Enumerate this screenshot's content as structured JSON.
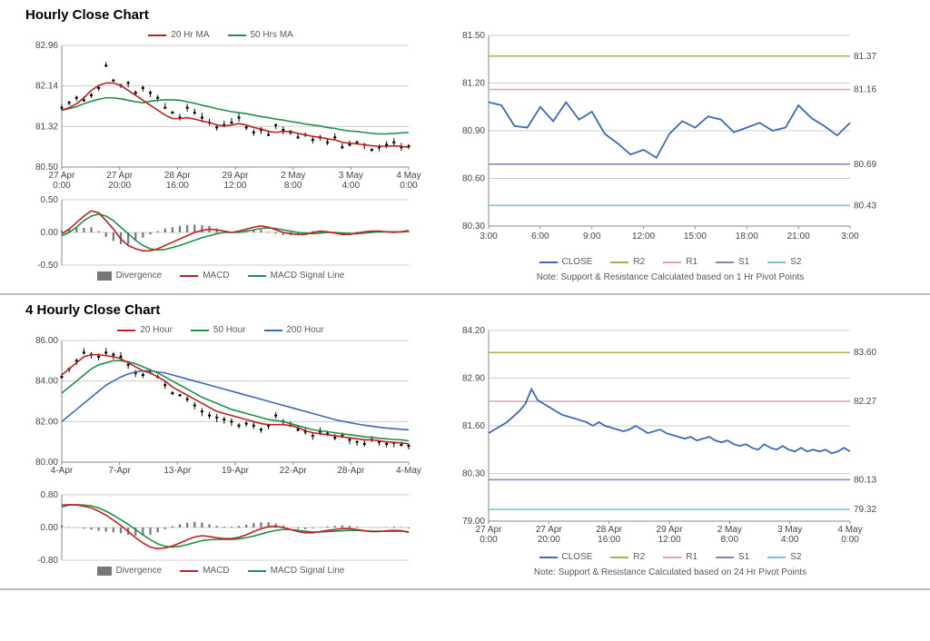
{
  "hourly": {
    "title": "Hourly Close Chart",
    "main_legend": [
      {
        "label": "20 Hr MA",
        "color": "#c11f1f"
      },
      {
        "label": "50 Hrs MA",
        "color": "#1f8f4a"
      }
    ],
    "main_chart": {
      "ylim": [
        80.5,
        82.96
      ],
      "yticks": [
        80.5,
        81.32,
        82.14,
        82.96
      ],
      "xlabels": [
        "27 Apr 0:00",
        "27 Apr 20:00",
        "28 Apr 16:00",
        "29 Apr 12:00",
        "2 May 8:00",
        "3 May 4:00",
        "4 May 0:00"
      ],
      "ma20_color": "#c11f1f",
      "ma50_color": "#1f8f4a",
      "candle_color": "#000000",
      "close": [
        81.7,
        81.8,
        81.9,
        81.85,
        81.95,
        82.1,
        82.55,
        82.25,
        82.15,
        82.2,
        82.0,
        82.1,
        82.0,
        81.9,
        81.7,
        81.6,
        81.5,
        81.7,
        81.6,
        81.5,
        81.4,
        81.3,
        81.35,
        81.4,
        81.5,
        81.3,
        81.2,
        81.25,
        81.15,
        81.35,
        81.25,
        81.2,
        81.1,
        81.15,
        81.05,
        81.1,
        81.0,
        81.1,
        80.9,
        80.95,
        81.0,
        80.95,
        80.85,
        80.9,
        80.95,
        81.0,
        80.9,
        80.92
      ],
      "ma20": [
        81.65,
        81.7,
        81.78,
        81.9,
        82.05,
        82.15,
        82.2,
        82.2,
        82.15,
        82.05,
        81.95,
        81.85,
        81.75,
        81.65,
        81.55,
        81.48,
        81.48,
        81.5,
        81.47,
        81.43,
        81.4,
        81.35,
        81.33,
        81.35,
        81.38,
        81.35,
        81.3,
        81.27,
        81.22,
        81.2,
        81.22,
        81.22,
        81.18,
        81.15,
        81.12,
        81.1,
        81.07,
        81.05,
        81.0,
        80.98,
        80.97,
        80.95,
        80.93,
        80.92,
        80.92,
        80.93,
        80.92,
        80.9
      ],
      "ma50": [
        81.65,
        81.68,
        81.72,
        81.78,
        81.83,
        81.87,
        81.9,
        81.9,
        81.88,
        81.85,
        81.82,
        81.8,
        81.83,
        81.85,
        81.86,
        81.86,
        81.85,
        81.82,
        81.79,
        81.75,
        81.72,
        81.68,
        81.65,
        81.62,
        81.6,
        81.58,
        81.55,
        81.52,
        81.5,
        81.47,
        81.45,
        81.42,
        81.4,
        81.37,
        81.35,
        81.33,
        81.3,
        81.28,
        81.25,
        81.23,
        81.22,
        81.2,
        81.18,
        81.17,
        81.17,
        81.18,
        81.19,
        81.2
      ],
      "background_color": "#ffffff",
      "grid_color": "#cccccc"
    },
    "macd_panel": {
      "ylim": [
        -0.5,
        0.5
      ],
      "yticks": [
        -0.5,
        0.0,
        0.5
      ],
      "macd_color": "#c11f1f",
      "signal_color": "#1f8f4a",
      "div_color": "#777777",
      "legend": [
        {
          "label": "Divergence",
          "type": "block",
          "color": "#777777"
        },
        {
          "label": "MACD",
          "type": "line",
          "color": "#c11f1f"
        },
        {
          "label": "MACD Signal Line",
          "type": "line",
          "color": "#1f8f4a"
        }
      ],
      "macd": [
        -0.02,
        0.05,
        0.15,
        0.25,
        0.33,
        0.3,
        0.18,
        0.05,
        -0.1,
        -0.2,
        -0.25,
        -0.28,
        -0.28,
        -0.25,
        -0.2,
        -0.15,
        -0.1,
        -0.05,
        0.0,
        0.03,
        0.05,
        0.04,
        0.02,
        0.0,
        0.02,
        0.05,
        0.08,
        0.1,
        0.08,
        0.04,
        0.0,
        -0.02,
        -0.03,
        -0.03,
        0.0,
        0.02,
        0.01,
        -0.01,
        -0.03,
        -0.03,
        -0.01,
        0.01,
        0.02,
        0.02,
        0.01,
        0.0,
        0.01,
        0.03
      ],
      "signal": [
        -0.05,
        0.0,
        0.08,
        0.18,
        0.25,
        0.28,
        0.25,
        0.18,
        0.08,
        -0.02,
        -0.12,
        -0.2,
        -0.25,
        -0.27,
        -0.26,
        -0.23,
        -0.2,
        -0.16,
        -0.12,
        -0.08,
        -0.05,
        -0.02,
        0.0,
        0.0,
        0.0,
        0.02,
        0.04,
        0.06,
        0.07,
        0.06,
        0.04,
        0.02,
        0.0,
        -0.01,
        -0.02,
        -0.01,
        0.0,
        0.0,
        -0.01,
        -0.02,
        -0.02,
        -0.01,
        0.0,
        0.01,
        0.01,
        0.01,
        0.01,
        0.02
      ],
      "div": [
        0.03,
        0.05,
        0.07,
        0.07,
        0.08,
        0.02,
        -0.07,
        -0.13,
        -0.18,
        -0.18,
        -0.13,
        -0.08,
        -0.03,
        0.02,
        0.06,
        0.08,
        0.1,
        0.11,
        0.12,
        0.11,
        0.1,
        0.06,
        0.02,
        0.0,
        0.02,
        0.03,
        0.04,
        0.04,
        0.01,
        -0.02,
        -0.04,
        -0.04,
        -0.03,
        -0.02,
        0.02,
        0.03,
        0.01,
        -0.01,
        -0.02,
        -0.01,
        0.01,
        0.02,
        0.02,
        0.01,
        0.0,
        -0.01,
        0.0,
        0.01
      ]
    },
    "sr_chart": {
      "ylim": [
        80.3,
        81.5
      ],
      "yticks": [
        80.3,
        80.6,
        80.9,
        81.2,
        81.5
      ],
      "xlabels": [
        "3:00",
        "6:00",
        "9:00",
        "12:00",
        "15:00",
        "18:00",
        "21:00",
        "3:00"
      ],
      "levels": {
        "R2": {
          "value": 81.37,
          "color": "#a0b64c"
        },
        "R1": {
          "value": 81.16,
          "color": "#d9a3b0"
        },
        "S1": {
          "value": 80.69,
          "color": "#8d7cc0"
        },
        "S2": {
          "value": 80.43,
          "color": "#6fc7d9"
        }
      },
      "close_color": "#3a6ab8",
      "close": [
        81.08,
        81.06,
        80.93,
        80.92,
        81.05,
        80.96,
        81.08,
        80.97,
        81.02,
        80.88,
        80.82,
        80.75,
        80.78,
        80.73,
        80.88,
        80.96,
        80.92,
        80.99,
        80.97,
        80.89,
        80.92,
        80.95,
        80.9,
        80.92,
        81.06,
        80.98,
        80.93,
        80.87,
        80.95
      ],
      "legend": [
        {
          "label": "CLOSE",
          "color": "#3a6ab8"
        },
        {
          "label": "R2",
          "color": "#a0b64c"
        },
        {
          "label": "R1",
          "color": "#d9a3b0"
        },
        {
          "label": "S1",
          "color": "#8d7cc0"
        },
        {
          "label": "S2",
          "color": "#6fc7d9"
        }
      ],
      "note": "Note: Support & Resistance Calculated based on 1 Hr Pivot Points"
    }
  },
  "four_hourly": {
    "title": "4 Hourly Close Chart",
    "main_legend": [
      {
        "label": "20 Hour",
        "color": "#c11f1f"
      },
      {
        "label": "50 Hour",
        "color": "#1f8f4a"
      },
      {
        "label": "200 Hour",
        "color": "#3a6ab8"
      }
    ],
    "main_chart": {
      "ylim": [
        80.0,
        86.0
      ],
      "yticks": [
        80.0,
        82.0,
        84.0,
        86.0
      ],
      "xlabels": [
        "4-Apr",
        "7-Apr",
        "13-Apr",
        "19-Apr",
        "22-Apr",
        "28-Apr",
        "4-May"
      ],
      "ma20_color": "#c11f1f",
      "ma50_color": "#1f8f4a",
      "ma200_color": "#3a6ab8",
      "candle_color": "#000000",
      "close": [
        84.2,
        84.6,
        85.0,
        85.4,
        85.3,
        85.2,
        85.4,
        85.3,
        85.2,
        84.8,
        84.4,
        84.3,
        84.5,
        84.2,
        83.8,
        83.4,
        83.3,
        83.1,
        82.8,
        82.5,
        82.3,
        82.2,
        82.1,
        82.0,
        81.8,
        81.9,
        81.8,
        81.6,
        81.8,
        82.3,
        82.0,
        81.8,
        81.6,
        81.5,
        81.3,
        81.5,
        81.4,
        81.2,
        81.3,
        81.1,
        81.0,
        80.9,
        81.1,
        81.0,
        80.9,
        80.95,
        80.85,
        80.8
      ],
      "ma20": [
        84.3,
        84.6,
        84.9,
        85.2,
        85.3,
        85.3,
        85.25,
        85.2,
        85.1,
        84.9,
        84.7,
        84.5,
        84.4,
        84.2,
        84.0,
        83.7,
        83.5,
        83.3,
        83.1,
        82.9,
        82.7,
        82.5,
        82.4,
        82.3,
        82.2,
        82.1,
        82.0,
        81.9,
        81.85,
        81.85,
        81.85,
        81.8,
        81.7,
        81.55,
        81.45,
        81.4,
        81.35,
        81.3,
        81.25,
        81.2,
        81.15,
        81.1,
        81.1,
        81.05,
        81.0,
        80.97,
        80.95,
        80.9
      ],
      "ma50": [
        83.4,
        83.7,
        84.0,
        84.3,
        84.6,
        84.8,
        84.9,
        85.0,
        85.0,
        84.95,
        84.85,
        84.7,
        84.55,
        84.4,
        84.2,
        84.0,
        83.8,
        83.6,
        83.4,
        83.2,
        83.05,
        82.9,
        82.75,
        82.6,
        82.5,
        82.4,
        82.3,
        82.2,
        82.1,
        82.05,
        82.0,
        81.9,
        81.8,
        81.7,
        81.6,
        81.55,
        81.5,
        81.45,
        81.4,
        81.35,
        81.3,
        81.25,
        81.22,
        81.18,
        81.15,
        81.12,
        81.1,
        81.05
      ],
      "ma200": [
        82.0,
        82.3,
        82.6,
        82.9,
        83.2,
        83.5,
        83.8,
        84.0,
        84.2,
        84.35,
        84.45,
        84.5,
        84.5,
        84.45,
        84.4,
        84.3,
        84.2,
        84.1,
        84.0,
        83.9,
        83.8,
        83.7,
        83.6,
        83.5,
        83.4,
        83.3,
        83.2,
        83.1,
        83.0,
        82.9,
        82.8,
        82.7,
        82.6,
        82.5,
        82.4,
        82.3,
        82.2,
        82.1,
        82.02,
        81.95,
        81.88,
        81.82,
        81.77,
        81.72,
        81.68,
        81.65,
        81.62,
        81.6
      ],
      "background_color": "#ffffff",
      "grid_color": "#cccccc"
    },
    "macd_panel": {
      "ylim": [
        -0.8,
        0.8
      ],
      "yticks": [
        -0.8,
        0.0,
        0.8
      ],
      "macd_color": "#c11f1f",
      "signal_color": "#1f8f4a",
      "div_color": "#777777",
      "legend": [
        {
          "label": "Divergence",
          "type": "block",
          "color": "#777777"
        },
        {
          "label": "MACD",
          "type": "line",
          "color": "#c11f1f"
        },
        {
          "label": "MACD Signal Line",
          "type": "line",
          "color": "#1f8f4a"
        }
      ],
      "macd": [
        0.55,
        0.56,
        0.55,
        0.52,
        0.48,
        0.4,
        0.3,
        0.18,
        0.05,
        -0.1,
        -0.25,
        -0.38,
        -0.48,
        -0.52,
        -0.5,
        -0.45,
        -0.38,
        -0.3,
        -0.23,
        -0.2,
        -0.22,
        -0.25,
        -0.27,
        -0.27,
        -0.24,
        -0.18,
        -0.1,
        -0.03,
        0.02,
        0.03,
        0.0,
        -0.05,
        -0.1,
        -0.13,
        -0.13,
        -0.1,
        -0.07,
        -0.05,
        -0.03,
        -0.03,
        -0.05,
        -0.08,
        -0.1,
        -0.1,
        -0.08,
        -0.07,
        -0.08,
        -0.12
      ],
      "signal": [
        0.5,
        0.55,
        0.56,
        0.55,
        0.53,
        0.48,
        0.4,
        0.3,
        0.19,
        0.08,
        -0.05,
        -0.18,
        -0.3,
        -0.4,
        -0.46,
        -0.48,
        -0.46,
        -0.42,
        -0.37,
        -0.32,
        -0.3,
        -0.29,
        -0.29,
        -0.29,
        -0.28,
        -0.25,
        -0.21,
        -0.16,
        -0.11,
        -0.07,
        -0.05,
        -0.05,
        -0.07,
        -0.09,
        -0.11,
        -0.11,
        -0.1,
        -0.09,
        -0.08,
        -0.07,
        -0.07,
        -0.08,
        -0.09,
        -0.09,
        -0.09,
        -0.09,
        -0.09,
        -0.1
      ],
      "div": [
        0.05,
        0.01,
        -0.01,
        -0.03,
        -0.05,
        -0.08,
        -0.1,
        -0.12,
        -0.14,
        -0.18,
        -0.2,
        -0.2,
        -0.18,
        -0.12,
        -0.04,
        0.03,
        0.08,
        0.12,
        0.14,
        0.12,
        0.08,
        0.04,
        0.02,
        0.02,
        0.04,
        0.07,
        0.11,
        0.13,
        0.13,
        0.1,
        0.05,
        0.0,
        -0.03,
        -0.04,
        -0.02,
        0.01,
        0.03,
        0.04,
        0.05,
        0.04,
        0.02,
        0.0,
        -0.01,
        -0.01,
        0.01,
        0.02,
        0.01,
        -0.02
      ]
    },
    "sr_chart": {
      "ylim": [
        79.0,
        84.2
      ],
      "yticks": [
        79.0,
        80.3,
        81.6,
        82.9,
        84.2
      ],
      "xlabels": [
        "27 Apr 0:00",
        "27 Apr 20:00",
        "28 Apr 16:00",
        "29 Apr 12:00",
        "2 May 8:00",
        "3 May 4:00",
        "4 May 0:00"
      ],
      "levels": {
        "R2": {
          "value": 83.6,
          "color": "#a0b64c"
        },
        "R1": {
          "value": 82.27,
          "color": "#d9a3b0"
        },
        "S1": {
          "value": 80.13,
          "color": "#8d7cc0"
        },
        "S2": {
          "value": 79.32,
          "color": "#6fc7d9"
        }
      },
      "close_color": "#3a6ab8",
      "close": [
        81.4,
        81.5,
        81.6,
        81.7,
        81.85,
        82.0,
        82.2,
        82.6,
        82.3,
        82.2,
        82.1,
        82.0,
        81.9,
        81.85,
        81.8,
        81.75,
        81.7,
        81.6,
        81.7,
        81.6,
        81.55,
        81.5,
        81.45,
        81.5,
        81.6,
        81.5,
        81.4,
        81.45,
        81.5,
        81.4,
        81.35,
        81.3,
        81.25,
        81.3,
        81.2,
        81.25,
        81.3,
        81.2,
        81.15,
        81.2,
        81.1,
        81.05,
        81.1,
        81.0,
        80.95,
        81.1,
        81.0,
        80.95,
        81.05,
        80.95,
        80.9,
        81.0,
        80.9,
        80.95,
        80.9,
        80.95,
        80.85,
        80.9,
        81.0,
        80.9
      ],
      "legend": [
        {
          "label": "CLOSE",
          "color": "#3a6ab8"
        },
        {
          "label": "R2",
          "color": "#a0b64c"
        },
        {
          "label": "R1",
          "color": "#d9a3b0"
        },
        {
          "label": "S1",
          "color": "#8d7cc0"
        },
        {
          "label": "S2",
          "color": "#6fc7d9"
        }
      ],
      "note": "Note: Support & Resistance Calculated based on 24 Hr Pivot Points"
    }
  }
}
